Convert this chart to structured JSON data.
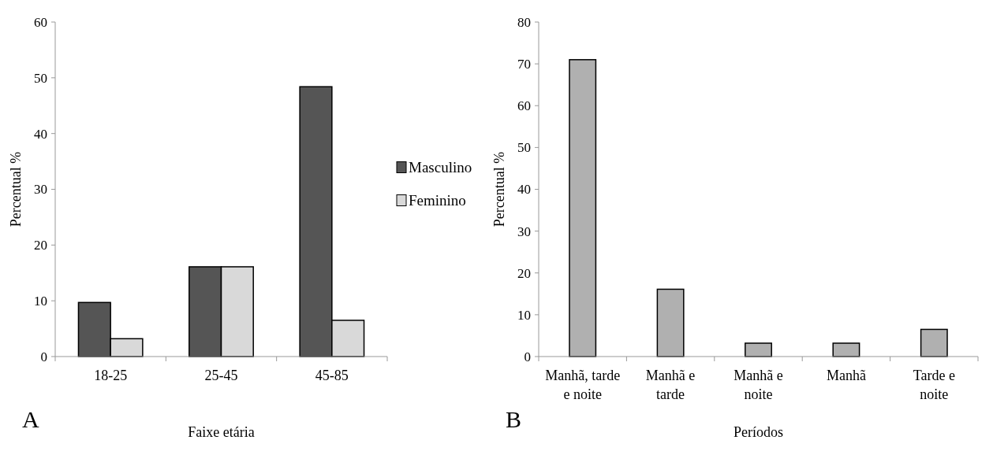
{
  "chart_data": [
    {
      "type": "bar",
      "categories": [
        "18-25",
        "25-45",
        "45-85"
      ],
      "xlabel": "Faixe etária",
      "ylabel": "Percentual %",
      "ylim": [
        0,
        60
      ],
      "yticks": [
        0,
        10,
        20,
        30,
        40,
        50,
        60
      ],
      "legend": "right",
      "annotations": [
        "A"
      ],
      "series": [
        {
          "name": "Masculino",
          "color": "#555555",
          "values": [
            9.7,
            16.1,
            48.4
          ]
        },
        {
          "name": "Feminino",
          "color": "#d9d9d9",
          "values": [
            3.2,
            16.1,
            6.5
          ]
        }
      ]
    },
    {
      "type": "bar",
      "categories": [
        "Manhã, tarde e noite",
        "Manhã e tarde",
        "Manhã e noite",
        "Manhã",
        "Tarde e noite"
      ],
      "xlabel": "Períodos",
      "ylabel": "Percentual %",
      "ylim": [
        0,
        80
      ],
      "yticks": [
        0,
        10,
        20,
        30,
        40,
        50,
        60,
        70,
        80
      ],
      "annotations": [
        "B"
      ],
      "series": [
        {
          "color": "#b0b0b0",
          "values": [
            71,
            16.1,
            3.2,
            3.2,
            6.5
          ]
        }
      ]
    }
  ]
}
